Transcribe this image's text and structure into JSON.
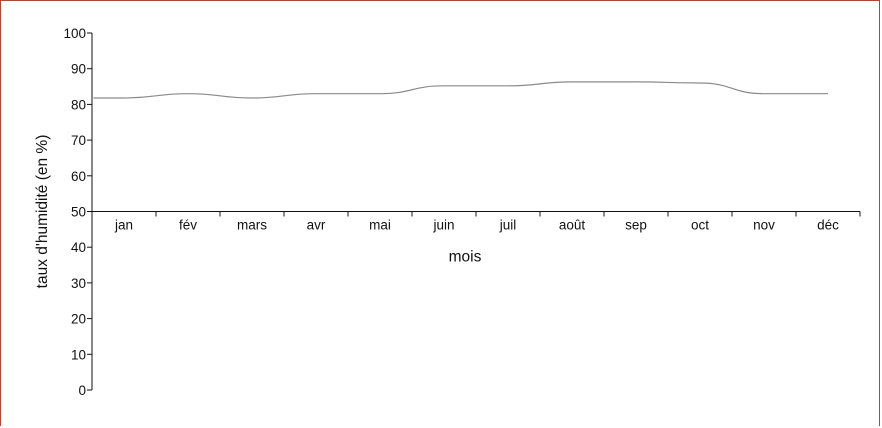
{
  "chart_data": {
    "type": "line",
    "xlabel": "mois",
    "ylabel": "taux d'humidité (en %)",
    "ylim": [
      0,
      100
    ],
    "yticks": [
      0,
      10,
      20,
      30,
      40,
      50,
      60,
      70,
      80,
      90,
      100
    ],
    "x_axis_at_y": 50,
    "categories": [
      "jan",
      "fév",
      "mars",
      "avr",
      "mai",
      "juin",
      "juil",
      "août",
      "sep",
      "oct",
      "nov",
      "déc"
    ],
    "series": [
      {
        "values": [
          81.8,
          83.0,
          81.8,
          83.0,
          83.0,
          85.2,
          85.2,
          86.3,
          86.3,
          86.0,
          83.0,
          83.0
        ],
        "color": "#8a8a8a"
      }
    ],
    "grid": false,
    "legend": "none"
  }
}
